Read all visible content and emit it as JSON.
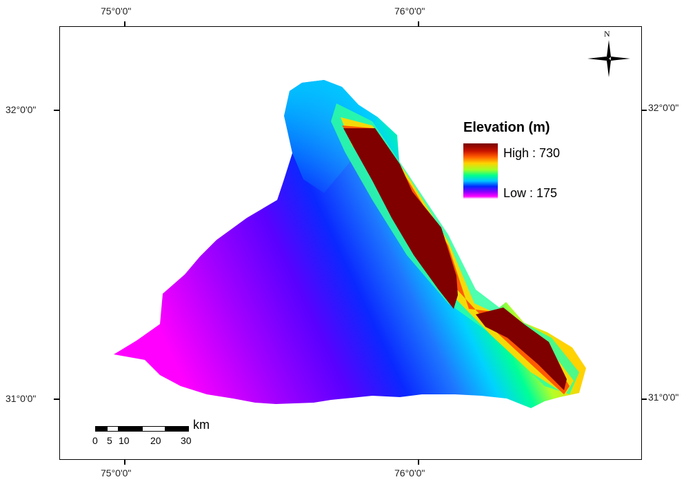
{
  "coordinates": {
    "lon_top": [
      "75°0'0\"",
      "76°0'0\""
    ],
    "lon_bottom": [
      "75°0'0\"",
      "76°0'0\""
    ],
    "lat_left": [
      "32°0'0\"",
      "31°0'0\""
    ],
    "lat_right": [
      "32°0'0\"",
      "31°0'0\""
    ]
  },
  "legend": {
    "title": "Elevation (m)",
    "high_label": "High : 730",
    "low_label": "Low : 175",
    "colors": [
      "#7a0000",
      "#ff5a00",
      "#ffd200",
      "#00ff8c",
      "#00c8ff",
      "#0028ff",
      "#8c00ff",
      "#ff00ff"
    ]
  },
  "scale_bar": {
    "unit": "km",
    "labels": [
      "0",
      "5",
      "10",
      "20",
      "30"
    ]
  },
  "north_arrow": {
    "label": "N",
    "icon": "north-arrow-icon"
  }
}
